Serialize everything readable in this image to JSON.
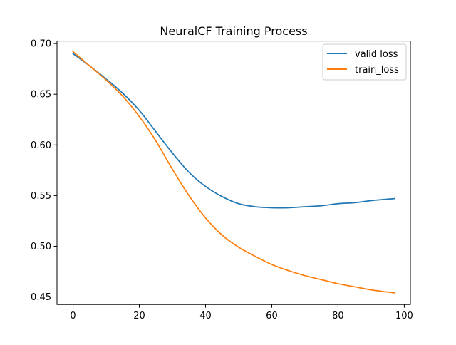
{
  "chart_data": {
    "type": "line",
    "title": "NeuralCF Training Process",
    "xlabel": "",
    "ylabel": "",
    "xlim": [
      -4.85,
      101.85
    ],
    "ylim": [
      0.4425,
      0.7025
    ],
    "xticks": [
      0,
      20,
      40,
      60,
      80,
      100
    ],
    "xtick_labels": [
      "0",
      "20",
      "40",
      "60",
      "80",
      "100"
    ],
    "yticks": [
      0.45,
      0.5,
      0.55,
      0.6,
      0.65,
      0.7
    ],
    "ytick_labels": [
      "0.45",
      "0.50",
      "0.55",
      "0.60",
      "0.65",
      "0.70"
    ],
    "grid": false,
    "legend_position": "upper right",
    "series": [
      {
        "name": "valid loss",
        "color": "#1f77b4",
        "x": [
          0,
          5,
          10,
          15,
          20,
          25,
          30,
          35,
          40,
          45,
          50,
          55,
          60,
          65,
          70,
          75,
          80,
          85,
          90,
          97
        ],
        "y": [
          0.69,
          0.678,
          0.665,
          0.651,
          0.634,
          0.613,
          0.592,
          0.573,
          0.559,
          0.549,
          0.542,
          0.539,
          0.538,
          0.538,
          0.539,
          0.54,
          0.542,
          0.543,
          0.545,
          0.547
        ]
      },
      {
        "name": "train_loss",
        "color": "#ff7f0e",
        "x": [
          0,
          5,
          10,
          15,
          20,
          25,
          30,
          35,
          40,
          45,
          50,
          55,
          60,
          65,
          70,
          75,
          80,
          85,
          90,
          97
        ],
        "y": [
          0.692,
          0.678,
          0.664,
          0.648,
          0.628,
          0.604,
          0.576,
          0.55,
          0.528,
          0.511,
          0.499,
          0.49,
          0.482,
          0.476,
          0.471,
          0.467,
          0.463,
          0.46,
          0.457,
          0.454
        ]
      }
    ]
  }
}
